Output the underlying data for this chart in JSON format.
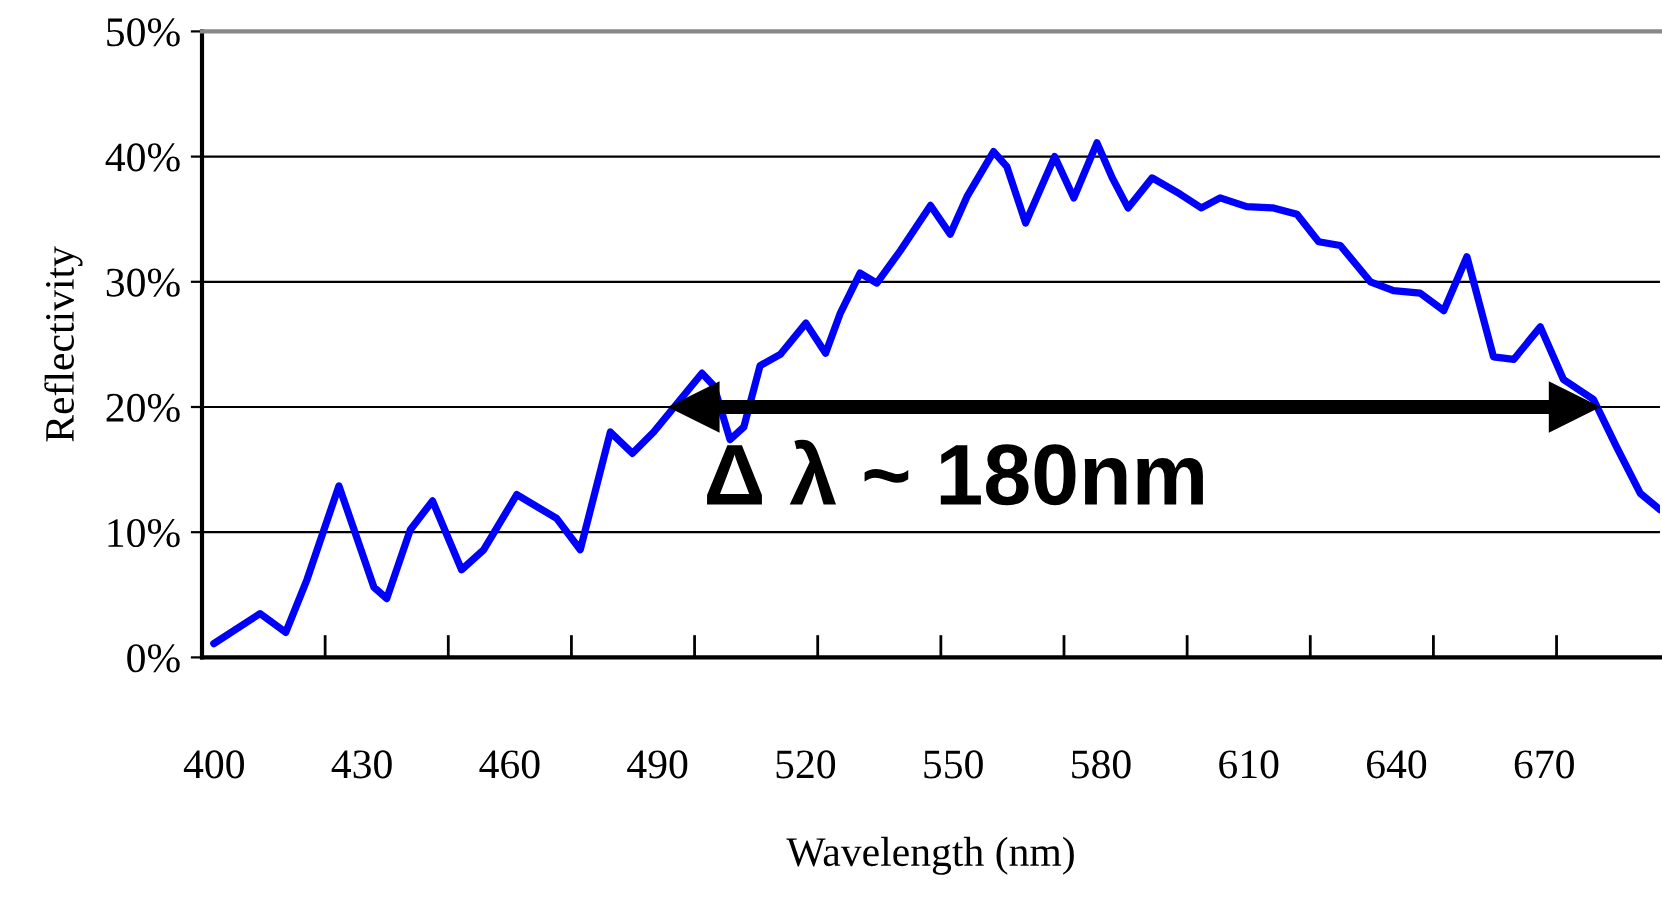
{
  "chart_data": {
    "type": "line",
    "xlabel": "Wavelength (nm)",
    "ylabel": "Reflectivity",
    "xlim": [
      397.5,
      693.5
    ],
    "ylim": [
      0,
      50
    ],
    "xticks": [
      400,
      430,
      460,
      490,
      520,
      550,
      580,
      610,
      640,
      670,
      {
        "value": 422.5,
        "label": null
      },
      {
        "value": 447.5,
        "label": null
      },
      {
        "value": 472.5,
        "label": null
      },
      {
        "value": 497.5,
        "label": null
      },
      {
        "value": 522.5,
        "label": null
      },
      {
        "value": 547.5,
        "label": null
      },
      {
        "value": 572.5,
        "label": null
      },
      {
        "value": 597.5,
        "label": null
      },
      {
        "value": 622.5,
        "label": null
      },
      {
        "value": 647.5,
        "label": null
      },
      {
        "value": 672.5,
        "label": null
      }
    ],
    "yticks": [
      {
        "value": 0,
        "label": "0%"
      },
      {
        "value": 10,
        "label": "10%"
      },
      {
        "value": 20,
        "label": "20%"
      },
      {
        "value": 30,
        "label": "30%"
      },
      {
        "value": 40,
        "label": "40%"
      },
      {
        "value": 50,
        "label": "50%"
      }
    ],
    "grid": "y",
    "legend": false,
    "marker": "none",
    "line_style": "solid",
    "series": [
      {
        "color": "#0000ff",
        "x": [
          399.9,
          409.3,
          414.5,
          418.8,
          425.3,
          432.4,
          435.0,
          439.8,
          444.3,
          450.2,
          454.7,
          461.4,
          469.5,
          474.3,
          480.4,
          484.9,
          489.2,
          499.0,
          501.4,
          504.7,
          507.5,
          510.8,
          514.9,
          520.1,
          524.1,
          527.1,
          531.1,
          534.5,
          539.3,
          545.4,
          549.4,
          552.8,
          558.2,
          560.9,
          564.7,
          570.6,
          574.5,
          579.2,
          582.3,
          585.5,
          590.4,
          596.1,
          600.4,
          604.2,
          609.6,
          615.0,
          619.8,
          624.2,
          628.6,
          634.7,
          639.4,
          644.8,
          649.6,
          654.3,
          659.7,
          663.8,
          669.2,
          673.9,
          680.0,
          684.7,
          689.5,
          693.5
        ],
        "values": [
          1.1,
          3.5,
          2.0,
          6.2,
          13.7,
          5.6,
          4.7,
          10.2,
          12.5,
          7.0,
          8.6,
          13.0,
          11.1,
          8.6,
          18.0,
          16.3,
          18.0,
          22.7,
          21.7,
          17.4,
          18.4,
          23.3,
          24.2,
          26.7,
          24.3,
          27.5,
          30.7,
          29.9,
          32.5,
          36.1,
          33.8,
          36.8,
          40.4,
          39.2,
          34.7,
          40.0,
          36.7,
          41.1,
          38.3,
          35.9,
          38.3,
          37.0,
          35.9,
          36.7,
          36.0,
          35.9,
          35.4,
          33.2,
          32.9,
          30.0,
          29.3,
          29.1,
          27.7,
          32.0,
          24.0,
          23.8,
          26.4,
          22.2,
          20.6,
          16.8,
          13.1,
          11.8
        ]
      },
      {
        "color": "#000000",
        "x": [
          497.5,
          676
        ],
        "values": [
          20,
          20
        ],
        "marker": "triangle"
      }
    ],
    "annotations": [
      "Δ λ ~ 180nm"
    ]
  }
}
